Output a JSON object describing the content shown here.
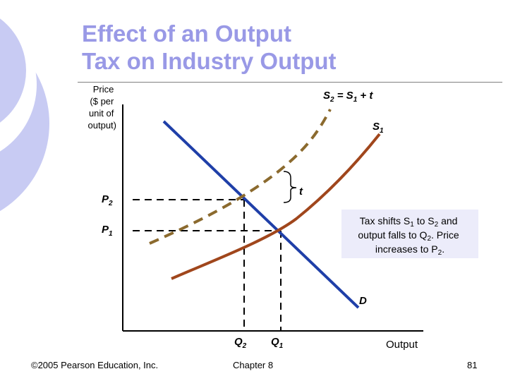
{
  "slide": {
    "title_lines": [
      "Effect of an Output",
      "Tax on Industry Output"
    ],
    "footer": {
      "copyright": "©2005 Pearson Education, Inc.",
      "chapter": "Chapter 8",
      "page": "81"
    }
  },
  "diagram": {
    "y_axis_label": [
      "Price",
      "($ per",
      "unit of",
      "output)"
    ],
    "x_axis_label": "Output",
    "curves": {
      "s2": {
        "label_base": "S",
        "sub": "2",
        "label_suffix": " = S",
        "sub2": "1",
        "label_tail": " + t",
        "color": "#8b6a2e"
      },
      "s1": {
        "label_base": "S",
        "sub": "1",
        "color": "#a0461c"
      },
      "d": {
        "label": "D",
        "color": "#1f3fa8"
      }
    },
    "price_labels": {
      "p2": {
        "base": "P",
        "sub": "2"
      },
      "p1": {
        "base": "P",
        "sub": "1"
      }
    },
    "quantity_labels": {
      "q2": {
        "base": "Q",
        "sub": "2"
      },
      "q1": {
        "base": "Q",
        "sub": "1"
      }
    },
    "tax_label": "t",
    "annotation": {
      "line1_a": "Tax shifts S",
      "line1_sub1": "1",
      "line1_b": " to S",
      "line1_sub2": "2",
      "line1_c": " and",
      "line2_a": "output falls to Q",
      "line2_sub": "2",
      "line2_b": ". Price",
      "line3_a": "increases to P",
      "line3_sub": "2",
      "line3_b": "."
    },
    "colors": {
      "accent_title": "#9999e6",
      "deco_circle": "#c8cbf3",
      "annotation_bg": "#ececfa",
      "axes": "#000000"
    }
  }
}
